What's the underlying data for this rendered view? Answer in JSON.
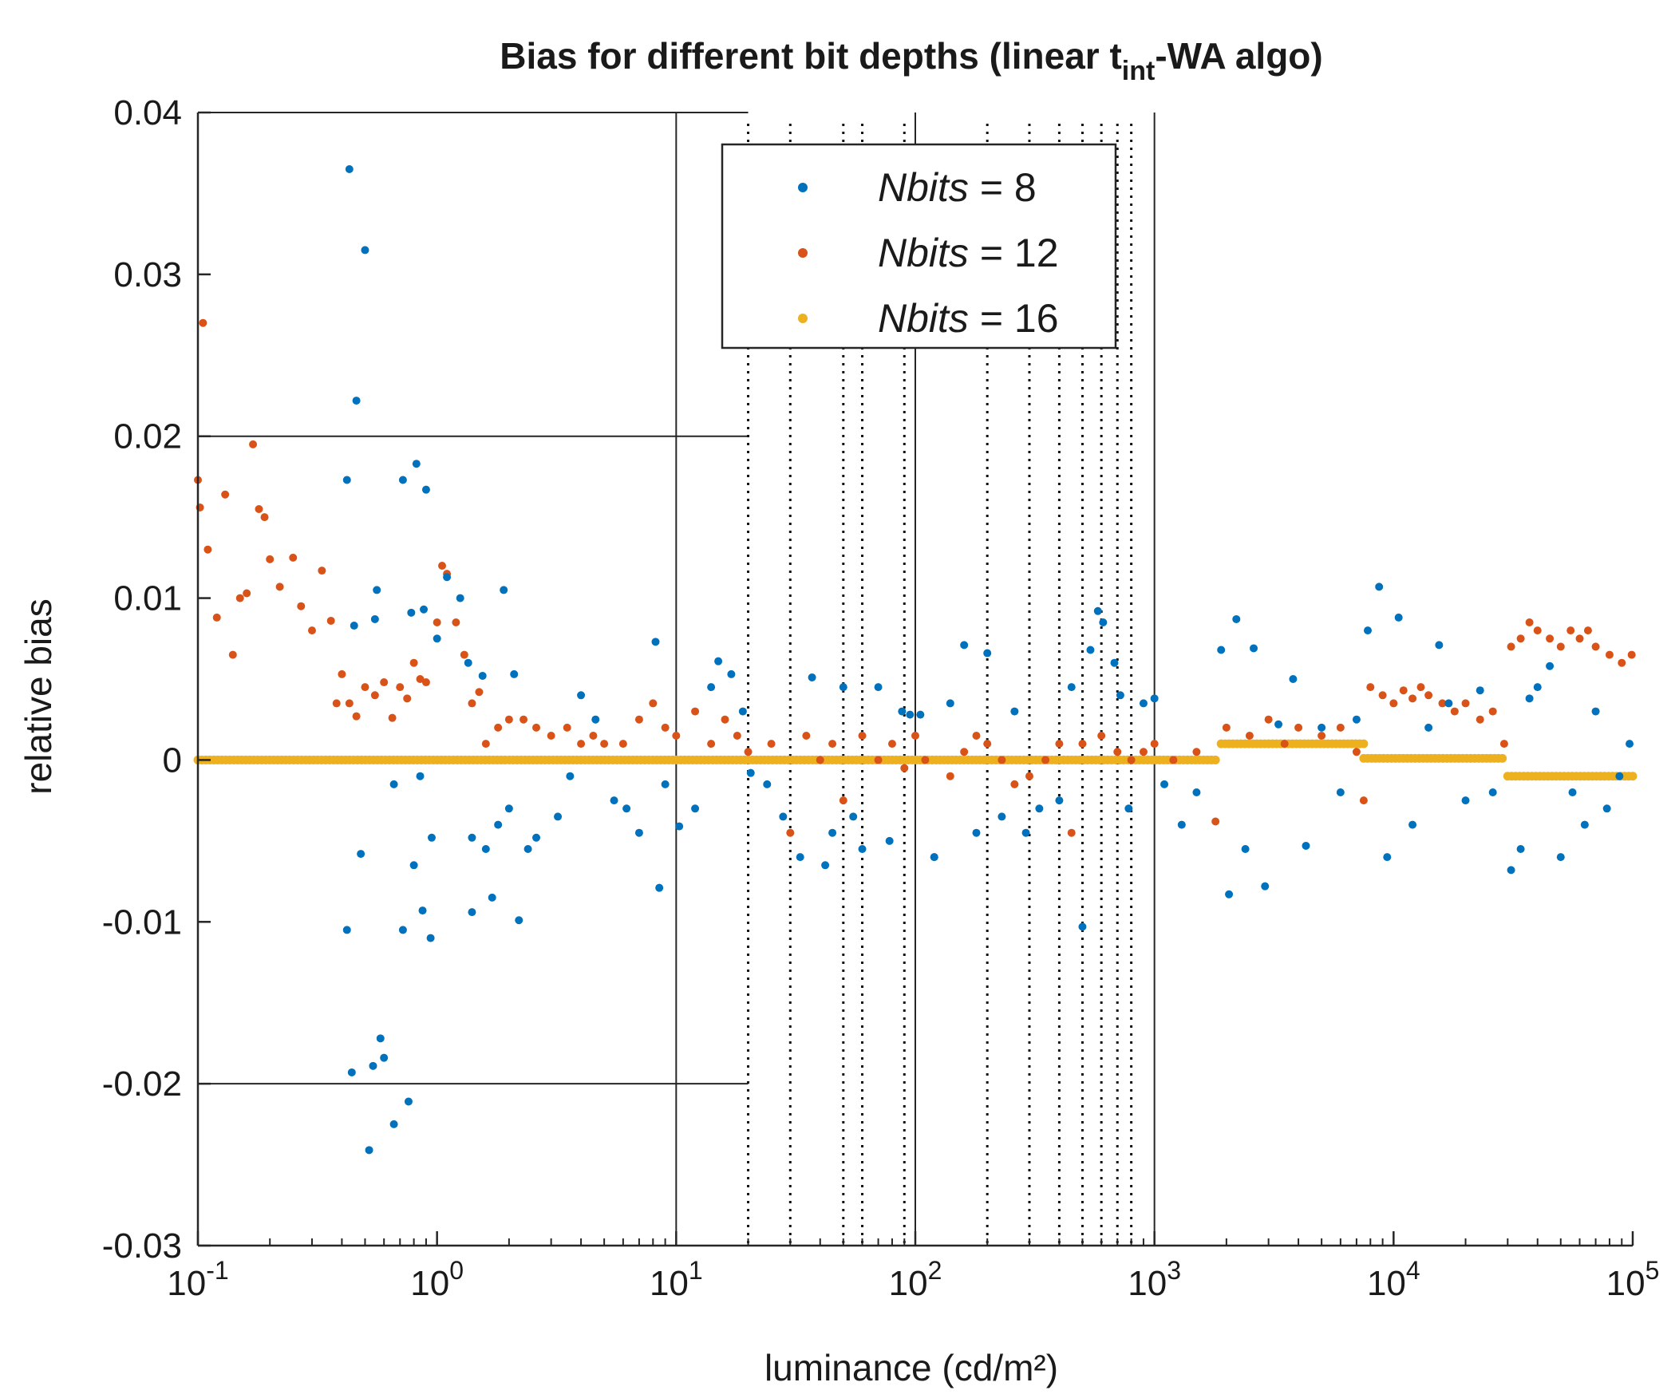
{
  "chart_data": {
    "type": "scatter",
    "title": {
      "prefix": "Bias for different bit depths (linear t",
      "subscript": "int",
      "suffix": "-WA algo)"
    },
    "xlabel": "luminance (cd/m²)",
    "ylabel": "relative bias",
    "xscale": "log",
    "xlim": [
      0.1,
      100000
    ],
    "ylim": [
      -0.03,
      0.04
    ],
    "x_ticks": [
      {
        "base": "10",
        "exp": "-1",
        "value": 0.1
      },
      {
        "base": "10",
        "exp": "0",
        "value": 1
      },
      {
        "base": "10",
        "exp": "1",
        "value": 10
      },
      {
        "base": "10",
        "exp": "2",
        "value": 100
      },
      {
        "base": "10",
        "exp": "3",
        "value": 1000
      },
      {
        "base": "10",
        "exp": "4",
        "value": 10000
      },
      {
        "base": "10",
        "exp": "5",
        "value": 100000
      }
    ],
    "y_ticks": [
      {
        "label": "0.04",
        "value": 0.04
      },
      {
        "label": "0.03",
        "value": 0.03
      },
      {
        "label": "0.02",
        "value": 0.02
      },
      {
        "label": "0.01",
        "value": 0.01
      },
      {
        "label": "0",
        "value": 0
      },
      {
        "label": "-0.01",
        "value": -0.01
      },
      {
        "label": "-0.02",
        "value": -0.02
      },
      {
        "label": "-0.03",
        "value": -0.03
      }
    ],
    "reference_lines": {
      "horizontal_solid": [
        {
          "y": 0.04,
          "x_from": 0.1,
          "x_to": 20
        },
        {
          "y": 0.02,
          "x_from": 0.1,
          "x_to": 20
        },
        {
          "y": -0.02,
          "x_from": 0.1,
          "x_to": 20
        }
      ],
      "vertical_solid": [
        10,
        100,
        1000
      ],
      "vertical_dotted": [
        20,
        30,
        50,
        60,
        90,
        200,
        300,
        400,
        500,
        600,
        700,
        800
      ]
    },
    "legend": {
      "location": "top-center",
      "entries": [
        {
          "italic": "Nbits",
          "rest": " = 8"
        },
        {
          "italic": "Nbits",
          "rest": " = 12"
        },
        {
          "italic": "Nbits",
          "rest": " = 16"
        }
      ]
    },
    "colors": [
      "#0072BD",
      "#D95319",
      "#EDB120"
    ],
    "series": [
      {
        "name": "Nbits = 8",
        "color": "#0072BD",
        "points": [
          [
            0.43,
            0.0365
          ],
          [
            0.5,
            0.0315
          ],
          [
            0.46,
            0.0222
          ],
          [
            0.42,
            0.0173
          ],
          [
            0.72,
            0.0173
          ],
          [
            0.82,
            0.0183
          ],
          [
            0.9,
            0.0167
          ],
          [
            0.56,
            0.0105
          ],
          [
            0.45,
            0.0083
          ],
          [
            0.55,
            0.0087
          ],
          [
            0.78,
            0.0091
          ],
          [
            0.88,
            0.0093
          ],
          [
            1.0,
            0.0075
          ],
          [
            1.1,
            0.0113
          ],
          [
            1.25,
            0.01
          ],
          [
            1.35,
            0.006
          ],
          [
            1.55,
            0.0052
          ],
          [
            1.9,
            0.0105
          ],
          [
            2.1,
            0.0053
          ],
          [
            0.48,
            -0.0058
          ],
          [
            0.8,
            -0.0065
          ],
          [
            0.95,
            -0.0048
          ],
          [
            0.42,
            -0.0105
          ],
          [
            0.72,
            -0.0105
          ],
          [
            0.87,
            -0.0093
          ],
          [
            0.94,
            -0.011
          ],
          [
            1.4,
            -0.0094
          ],
          [
            1.7,
            -0.0085
          ],
          [
            2.2,
            -0.0099
          ],
          [
            0.44,
            -0.0193
          ],
          [
            0.58,
            -0.0172
          ],
          [
            0.6,
            -0.0184
          ],
          [
            0.54,
            -0.0189
          ],
          [
            0.76,
            -0.0211
          ],
          [
            0.66,
            -0.0225
          ],
          [
            0.52,
            -0.0241
          ],
          [
            0.66,
            -0.0015
          ],
          [
            0.85,
            -0.001
          ],
          [
            1.4,
            -0.0048
          ],
          [
            1.6,
            -0.0055
          ],
          [
            1.8,
            -0.004
          ],
          [
            2.4,
            -0.0055
          ],
          [
            2.0,
            -0.003
          ],
          [
            2.6,
            -0.0048
          ],
          [
            3.2,
            -0.0035
          ],
          [
            3.6,
            -0.001
          ],
          [
            4.0,
            0.004
          ],
          [
            4.6,
            0.0025
          ],
          [
            5.5,
            -0.0025
          ],
          [
            6.2,
            -0.003
          ],
          [
            7.0,
            -0.0045
          ],
          [
            8.2,
            0.0073
          ],
          [
            8.5,
            -0.0079
          ],
          [
            9.0,
            -0.0015
          ],
          [
            10.3,
            -0.0041
          ],
          [
            12.0,
            -0.003
          ],
          [
            14.0,
            0.0045
          ],
          [
            15.0,
            0.0061
          ],
          [
            17.0,
            0.0053
          ],
          [
            19.0,
            0.003
          ],
          [
            20.5,
            -0.0008
          ],
          [
            24.0,
            -0.0015
          ],
          [
            28.0,
            -0.0035
          ],
          [
            33.0,
            -0.006
          ],
          [
            37.0,
            0.0051
          ],
          [
            42.0,
            -0.0065
          ],
          [
            45.0,
            -0.0045
          ],
          [
            50.0,
            0.0045
          ],
          [
            55.0,
            -0.0035
          ],
          [
            60.0,
            -0.0055
          ],
          [
            70.0,
            0.0045
          ],
          [
            78.0,
            -0.005
          ],
          [
            88.0,
            0.003
          ],
          [
            95.0,
            0.0028
          ],
          [
            105.0,
            0.0028
          ],
          [
            120.0,
            -0.006
          ],
          [
            140.0,
            0.0035
          ],
          [
            160.0,
            0.0071
          ],
          [
            180.0,
            -0.0045
          ],
          [
            200.0,
            0.0066
          ],
          [
            230.0,
            -0.0035
          ],
          [
            260.0,
            0.003
          ],
          [
            290.0,
            -0.0045
          ],
          [
            330.0,
            -0.003
          ],
          [
            400.0,
            -0.0025
          ],
          [
            450.0,
            0.0045
          ],
          [
            500.0,
            -0.0103
          ],
          [
            540.0,
            0.0068
          ],
          [
            580.0,
            0.0092
          ],
          [
            610.0,
            0.0085
          ],
          [
            680.0,
            0.006
          ],
          [
            720.0,
            0.004
          ],
          [
            780.0,
            -0.003
          ],
          [
            900.0,
            0.0035
          ],
          [
            1000.0,
            0.0038
          ],
          [
            1100.0,
            -0.0015
          ],
          [
            1300.0,
            -0.004
          ],
          [
            1500.0,
            -0.002
          ],
          [
            1900.0,
            0.0068
          ],
          [
            2050.0,
            -0.0083
          ],
          [
            2200.0,
            0.0087
          ],
          [
            2400.0,
            -0.0055
          ],
          [
            2600.0,
            0.0069
          ],
          [
            2900.0,
            -0.0078
          ],
          [
            3300.0,
            0.0022
          ],
          [
            3800.0,
            0.005
          ],
          [
            4300.0,
            -0.0053
          ],
          [
            5000.0,
            0.002
          ],
          [
            6000.0,
            -0.002
          ],
          [
            7000.0,
            0.0025
          ],
          [
            7800.0,
            0.008
          ],
          [
            8700.0,
            0.0107
          ],
          [
            9400.0,
            -0.006
          ],
          [
            10500.0,
            0.0088
          ],
          [
            12000.0,
            -0.004
          ],
          [
            14000.0,
            0.002
          ],
          [
            15500.0,
            0.0071
          ],
          [
            17000.0,
            0.0035
          ],
          [
            20000.0,
            -0.0025
          ],
          [
            23000.0,
            0.0043
          ],
          [
            26000.0,
            -0.002
          ],
          [
            31000.0,
            -0.0068
          ],
          [
            34000.0,
            -0.0055
          ],
          [
            37000.0,
            0.0038
          ],
          [
            40000.0,
            0.0045
          ],
          [
            45000.0,
            0.0058
          ],
          [
            50000.0,
            -0.006
          ],
          [
            56000.0,
            -0.002
          ],
          [
            63000.0,
            -0.004
          ],
          [
            70000.0,
            0.003
          ],
          [
            78000.0,
            -0.003
          ],
          [
            88000.0,
            -0.001
          ],
          [
            97000.0,
            0.001
          ]
        ]
      },
      {
        "name": "Nbits = 12",
        "color": "#D95319",
        "points": [
          [
            0.105,
            0.027
          ],
          [
            0.1,
            0.0173
          ],
          [
            0.102,
            0.0156
          ],
          [
            0.11,
            0.013
          ],
          [
            0.12,
            0.0088
          ],
          [
            0.13,
            0.0164
          ],
          [
            0.14,
            0.0065
          ],
          [
            0.15,
            0.01
          ],
          [
            0.16,
            0.0103
          ],
          [
            0.17,
            0.0195
          ],
          [
            0.18,
            0.0155
          ],
          [
            0.19,
            0.015
          ],
          [
            0.2,
            0.0124
          ],
          [
            0.22,
            0.0107
          ],
          [
            0.25,
            0.0125
          ],
          [
            0.27,
            0.0095
          ],
          [
            0.3,
            0.008
          ],
          [
            0.33,
            0.0117
          ],
          [
            0.36,
            0.0086
          ],
          [
            0.38,
            0.0035
          ],
          [
            0.4,
            0.0053
          ],
          [
            0.43,
            0.0035
          ],
          [
            0.46,
            0.0027
          ],
          [
            0.5,
            0.0045
          ],
          [
            0.55,
            0.004
          ],
          [
            0.6,
            0.0048
          ],
          [
            0.65,
            0.0026
          ],
          [
            0.7,
            0.0045
          ],
          [
            0.75,
            0.0038
          ],
          [
            0.8,
            0.006
          ],
          [
            0.85,
            0.005
          ],
          [
            0.9,
            0.0048
          ],
          [
            1.0,
            0.0085
          ],
          [
            1.05,
            0.012
          ],
          [
            1.1,
            0.0115
          ],
          [
            1.2,
            0.0085
          ],
          [
            1.3,
            0.0065
          ],
          [
            1.4,
            0.0035
          ],
          [
            1.5,
            0.0042
          ],
          [
            1.6,
            0.001
          ],
          [
            1.8,
            0.002
          ],
          [
            2.0,
            0.0025
          ],
          [
            2.3,
            0.0025
          ],
          [
            2.6,
            0.002
          ],
          [
            3.0,
            0.0015
          ],
          [
            3.5,
            0.002
          ],
          [
            4.0,
            0.001
          ],
          [
            4.5,
            0.0015
          ],
          [
            5.0,
            0.001
          ],
          [
            6.0,
            0.001
          ],
          [
            7.0,
            0.0025
          ],
          [
            8.0,
            0.0035
          ],
          [
            9.0,
            0.002
          ],
          [
            10.0,
            0.0015
          ],
          [
            12.0,
            0.003
          ],
          [
            14.0,
            0.001
          ],
          [
            16.0,
            0.0025
          ],
          [
            18.0,
            0.0015
          ],
          [
            20.0,
            0.0005
          ],
          [
            25.0,
            0.001
          ],
          [
            30.0,
            -0.0045
          ],
          [
            35.0,
            0.0015
          ],
          [
            40.0,
            0.0
          ],
          [
            45.0,
            0.001
          ],
          [
            50.0,
            -0.0025
          ],
          [
            60.0,
            0.0015
          ],
          [
            70.0,
            0.0
          ],
          [
            80.0,
            0.001
          ],
          [
            90.0,
            -0.0005
          ],
          [
            100.0,
            0.0015
          ],
          [
            110.0,
            0.0
          ],
          [
            120.0,
            -0.006
          ],
          [
            140.0,
            -0.001
          ],
          [
            160.0,
            0.0005
          ],
          [
            180.0,
            0.0015
          ],
          [
            200.0,
            0.001
          ],
          [
            230.0,
            0.0
          ],
          [
            260.0,
            -0.0015
          ],
          [
            300.0,
            -0.001
          ],
          [
            350.0,
            0.0
          ],
          [
            400.0,
            0.001
          ],
          [
            450.0,
            -0.0045
          ],
          [
            500.0,
            0.001
          ],
          [
            600.0,
            0.0015
          ],
          [
            700.0,
            0.0005
          ],
          [
            800.0,
            0.0
          ],
          [
            900.0,
            0.0005
          ],
          [
            1000.0,
            0.001
          ],
          [
            1200.0,
            0.0
          ],
          [
            1500.0,
            0.0005
          ],
          [
            1800.0,
            -0.0038
          ],
          [
            2000.0,
            0.002
          ],
          [
            2500.0,
            0.0015
          ],
          [
            3000.0,
            0.0025
          ],
          [
            3500.0,
            0.001
          ],
          [
            4000.0,
            0.002
          ],
          [
            5000.0,
            0.0015
          ],
          [
            6000.0,
            0.002
          ],
          [
            7000.0,
            0.0005
          ],
          [
            7500.0,
            -0.0025
          ],
          [
            8000.0,
            0.0045
          ],
          [
            9000.0,
            0.004
          ],
          [
            10000.0,
            0.0035
          ],
          [
            11000.0,
            0.0043
          ],
          [
            12000.0,
            0.0038
          ],
          [
            13000.0,
            0.0045
          ],
          [
            14000.0,
            0.004
          ],
          [
            16000.0,
            0.0035
          ],
          [
            18000.0,
            0.003
          ],
          [
            20000.0,
            0.0035
          ],
          [
            23000.0,
            0.0025
          ],
          [
            26000.0,
            0.003
          ],
          [
            29000.0,
            0.001
          ],
          [
            31000.0,
            0.007
          ],
          [
            34000.0,
            0.0075
          ],
          [
            37000.0,
            0.0085
          ],
          [
            40000.0,
            0.008
          ],
          [
            45000.0,
            0.0075
          ],
          [
            50000.0,
            0.007
          ],
          [
            55000.0,
            0.008
          ],
          [
            60000.0,
            0.0075
          ],
          [
            65000.0,
            0.008
          ],
          [
            70000.0,
            0.007
          ],
          [
            80000.0,
            0.0065
          ],
          [
            90000.0,
            0.006
          ],
          [
            99000.0,
            0.0065
          ]
        ]
      },
      {
        "name": "Nbits = 16",
        "segments": [
          {
            "x_from": 0.1,
            "x_to": 1800,
            "y": 0.0
          },
          {
            "x_from": 1900,
            "x_to": 7500,
            "y": 0.001
          },
          {
            "x_from": 7500,
            "x_to": 28500,
            "y": 0.0001
          },
          {
            "x_from": 30000,
            "x_to": 100000,
            "y": -0.001
          }
        ],
        "color": "#EDB120"
      }
    ]
  }
}
